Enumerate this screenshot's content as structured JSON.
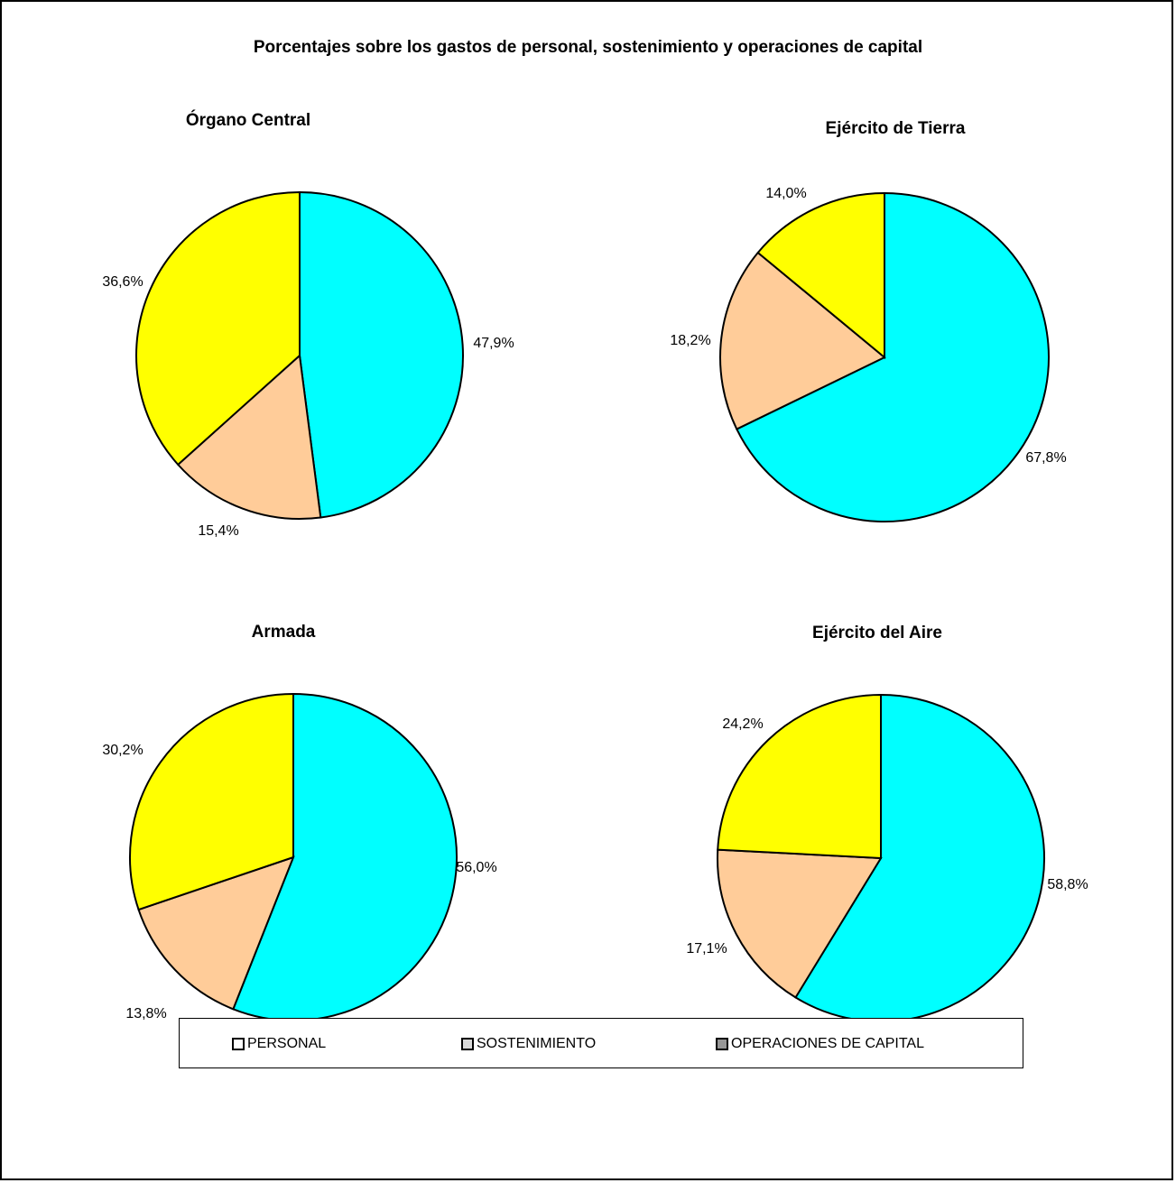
{
  "title": "Porcentajes sobre los gastos de personal, sostenimiento y operaciones de capital",
  "colors": {
    "PERSONAL": "#00ffff",
    "SOSTENIMIENTO": "#ffcc99",
    "OPERACIONES DE CAPITAL": "#ffff00"
  },
  "legend": {
    "items": [
      {
        "label": "PERSONAL",
        "swatch": "#ffffff"
      },
      {
        "label": "SOSTENIMIENTO",
        "swatch": "#d9d9d9"
      },
      {
        "label": "OPERACIONES DE CAPITAL",
        "swatch": "#969696"
      }
    ]
  },
  "chart_data": [
    {
      "type": "pie",
      "title": "Órgano Central",
      "categories": [
        "PERSONAL",
        "SOSTENIMIENTO",
        "OPERACIONES DE CAPITAL"
      ],
      "values": [
        47.9,
        15.4,
        36.6
      ],
      "labels": [
        "47,9%",
        "15,4%",
        "36,6%"
      ]
    },
    {
      "type": "pie",
      "title": "Ejército de Tierra",
      "categories": [
        "PERSONAL",
        "SOSTENIMIENTO",
        "OPERACIONES DE CAPITAL"
      ],
      "values": [
        67.8,
        18.2,
        14.0
      ],
      "labels": [
        "67,8%",
        "18,2%",
        "14,0%"
      ]
    },
    {
      "type": "pie",
      "title": "Armada",
      "categories": [
        "PERSONAL",
        "SOSTENIMIENTO",
        "OPERACIONES DE CAPITAL"
      ],
      "values": [
        56.0,
        13.8,
        30.2
      ],
      "labels": [
        "56,0%",
        "13,8%",
        "30,2%"
      ]
    },
    {
      "type": "pie",
      "title": "Ejército del Aire",
      "categories": [
        "PERSONAL",
        "SOSTENIMIENTO",
        "OPERACIONES DE CAPITAL"
      ],
      "values": [
        58.8,
        17.1,
        24.2
      ],
      "labels": [
        "58,8%",
        "17,1%",
        "24,2%"
      ]
    }
  ]
}
